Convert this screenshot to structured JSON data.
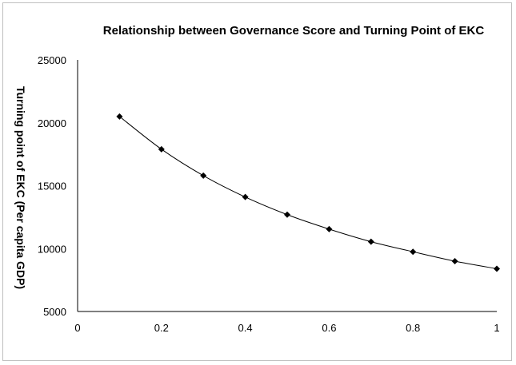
{
  "chart_data": {
    "type": "line",
    "title": "Relationship between Governance Score and Turning Point of EKC",
    "xlabel": "",
    "ylabel": "Turning point of EKC (Per capita GDP)",
    "xlim": [
      0,
      1
    ],
    "ylim": [
      5000,
      25000
    ],
    "x_ticks": [
      0,
      0.2,
      0.4,
      0.6,
      0.8,
      1
    ],
    "x_tick_labels": [
      "0",
      "0.2",
      "0.4",
      "0.6",
      "0.8",
      "1"
    ],
    "y_ticks": [
      5000,
      10000,
      15000,
      20000,
      25000
    ],
    "y_tick_labels": [
      "5000",
      "10000",
      "15000",
      "20000",
      "25000"
    ],
    "grid": false,
    "legend": "none",
    "series": [
      {
        "color": "#000000",
        "marker": "diamond",
        "x": [
          0.1,
          0.2,
          0.3,
          0.4,
          0.5,
          0.6,
          0.7,
          0.8,
          0.9,
          1.0
        ],
        "y": [
          20500,
          17900,
          15800,
          14100,
          12700,
          11550,
          10550,
          9750,
          9000,
          8400
        ]
      }
    ]
  }
}
